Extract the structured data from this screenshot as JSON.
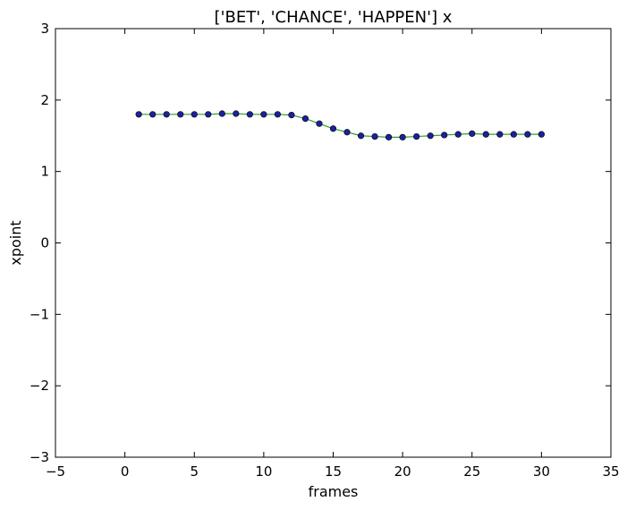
{
  "chart_data": {
    "type": "line",
    "title": "['BET', 'CHANCE', 'HAPPEN'] x",
    "xlabel": "frames",
    "ylabel": "xpoint",
    "xlim": [
      -5,
      35
    ],
    "ylim": [
      -3,
      3
    ],
    "xticks": [
      -5,
      0,
      5,
      10,
      15,
      20,
      25,
      30,
      35
    ],
    "yticks": [
      -3,
      -2,
      -1,
      0,
      1,
      2,
      3
    ],
    "xtick_labels": [
      "−5",
      "0",
      "5",
      "10",
      "15",
      "20",
      "25",
      "30",
      "35"
    ],
    "ytick_labels": [
      "−3",
      "−2",
      "−1",
      "0",
      "1",
      "2",
      "3"
    ],
    "grid": false,
    "series": [
      {
        "line_color": "#2ca02c",
        "marker_color": "#1f1f9f",
        "x": [
          1,
          2,
          3,
          4,
          5,
          6,
          7,
          8,
          9,
          10,
          11,
          12,
          13,
          14,
          15,
          16,
          17,
          18,
          19,
          20,
          21,
          22,
          23,
          24,
          25,
          26,
          27,
          28,
          29,
          30
        ],
        "values": [
          1.8,
          1.8,
          1.8,
          1.8,
          1.8,
          1.8,
          1.81,
          1.81,
          1.8,
          1.8,
          1.8,
          1.79,
          1.74,
          1.67,
          1.6,
          1.55,
          1.5,
          1.49,
          1.48,
          1.48,
          1.49,
          1.5,
          1.51,
          1.52,
          1.53,
          1.52,
          1.52,
          1.52,
          1.52,
          1.52
        ]
      }
    ]
  }
}
